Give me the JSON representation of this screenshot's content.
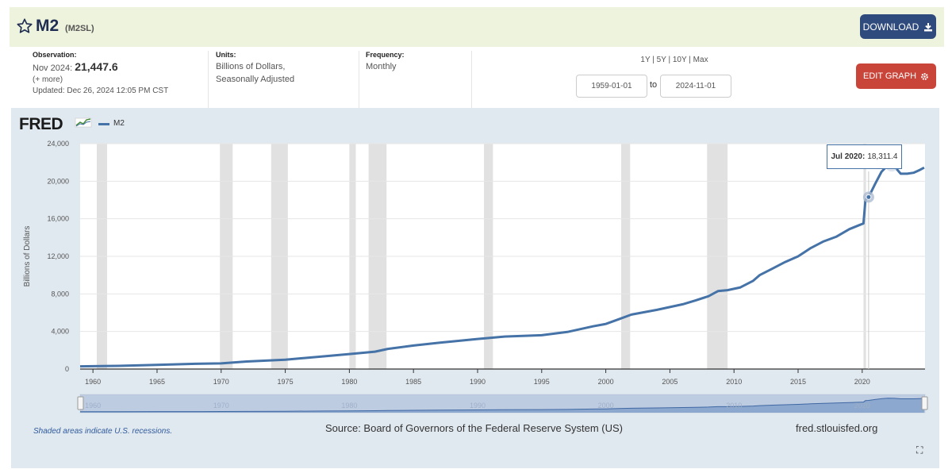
{
  "header": {
    "title": "M2",
    "series_id": "(M2SL)",
    "download_label": "DOWNLOAD"
  },
  "meta": {
    "observation_label": "Observation:",
    "observation_date": "Nov 2024:",
    "observation_value": "21,447.6",
    "more": "(+ more)",
    "updated": "Updated: Dec 26, 2024 12:05 PM CST",
    "units_label": "Units:",
    "units_line1": "Billions of Dollars,",
    "units_line2": "Seasonally Adjusted",
    "frequency_label": "Frequency:",
    "frequency": "Monthly"
  },
  "range": {
    "r1y": "1Y",
    "r5y": "5Y",
    "r10y": "10Y",
    "rmax": "Max",
    "sep": "|",
    "start": "1959-01-01",
    "to": "to",
    "end": "2024-11-01",
    "edit_label": "EDIT GRAPH"
  },
  "graph": {
    "logo": "FRED",
    "legend": "M2",
    "footnote": "Shaded areas indicate U.S. recessions.",
    "source": "Source: Board of Governors of the Federal Reserve System (US)",
    "site": "fred.stlouisfed.org",
    "tooltip_date": "Jul 2020:",
    "tooltip_value": "18,311.4"
  },
  "chart_data": {
    "type": "line",
    "ylabel": "Billions of Dollars",
    "ylim": [
      0,
      24000
    ],
    "xlim": [
      1959,
      2024.9
    ],
    "yticks": [
      "0",
      "4,000",
      "8,000",
      "12,000",
      "16,000",
      "20,000",
      "24,000"
    ],
    "xticks": [
      "1960",
      "1965",
      "1970",
      "1975",
      "1980",
      "1985",
      "1990",
      "1995",
      "2000",
      "2005",
      "2010",
      "2015",
      "2020"
    ],
    "navigator_ticks": [
      "1960",
      "1970",
      "1980",
      "1990",
      "2000",
      "2010",
      "2020"
    ],
    "recessions": [
      [
        1960.3,
        1961.1
      ],
      [
        1969.9,
        1970.9
      ],
      [
        1973.9,
        1975.2
      ],
      [
        1980.0,
        1980.5
      ],
      [
        1981.5,
        1982.9
      ],
      [
        1990.5,
        1991.2
      ],
      [
        2001.2,
        2001.9
      ],
      [
        2007.9,
        2009.5
      ],
      [
        2020.1,
        2020.3
      ]
    ],
    "series": [
      {
        "name": "M2",
        "color": "#4572a7",
        "x": [
          1959,
          1962,
          1965,
          1968,
          1970,
          1972,
          1975,
          1978,
          1980,
          1982,
          1983,
          1985,
          1987,
          1990,
          1992,
          1995,
          1997,
          1999,
          2000,
          2001,
          2002,
          2004,
          2006,
          2007,
          2008,
          2008.75,
          2009.5,
          2010.5,
          2011.5,
          2012,
          2013,
          2014,
          2015,
          2016,
          2017,
          2018,
          2019,
          2019.9,
          2020.1,
          2020.25,
          2020.5,
          2021,
          2021.5,
          2022,
          2022.5,
          2023,
          2023.5,
          2024,
          2024.5,
          2024.83
        ],
        "y": [
          290,
          340,
          450,
          560,
          600,
          800,
          1000,
          1350,
          1600,
          1850,
          2150,
          2500,
          2800,
          3200,
          3450,
          3600,
          3950,
          4550,
          4800,
          5300,
          5800,
          6300,
          6900,
          7300,
          7750,
          8300,
          8400,
          8700,
          9400,
          10000,
          10700,
          11400,
          12000,
          12900,
          13600,
          14100,
          14900,
          15400,
          15500,
          18000,
          18311.4,
          19700,
          21000,
          21700,
          21600,
          20800,
          20800,
          20900,
          21200,
          21447.6
        ]
      }
    ],
    "highlight": {
      "x": 2020.5,
      "y": 18311.4
    }
  }
}
